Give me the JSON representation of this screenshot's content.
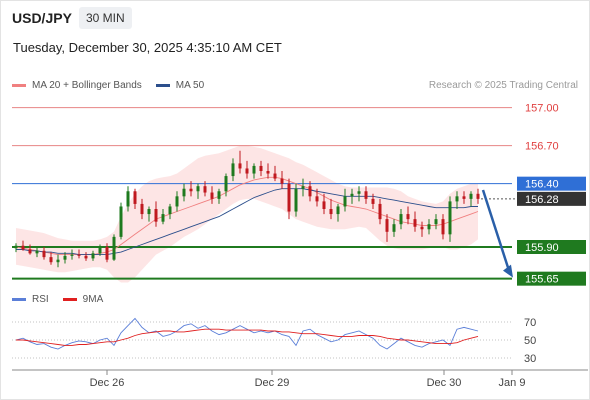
{
  "header": {
    "symbol": "USD/JPY",
    "timeframe": "30 MIN",
    "datetime": "Tuesday, December 30, 2025 4:35:10 AM CET"
  },
  "legend": {
    "ma20_label": "MA 20 + Bollinger Bands",
    "ma50_label": "MA 50",
    "ma20_color": "#f08080",
    "ma50_color": "#2c4f8c",
    "research": "Research © 2025 Trading Central"
  },
  "rsi_legend": {
    "rsi_label": "RSI",
    "ma9_label": "9MA",
    "rsi_color": "#5b7fd8",
    "ma9_color": "#e02020"
  },
  "chart_data": {
    "type": "candlestick",
    "x_tick_labels": [
      "Dec 26",
      "Dec 29",
      "Dec 30",
      "Jan 9"
    ],
    "price_axis": {
      "levels": [
        {
          "value": 157.0,
          "label": "157.00",
          "style": "resistance-thin",
          "color": "#e06666"
        },
        {
          "value": 156.7,
          "label": "156.70",
          "style": "resistance-thin",
          "color": "#e06666"
        },
        {
          "value": 156.4,
          "label": "156.40",
          "style": "pivot",
          "color": "#2f6fd6"
        },
        {
          "value": 155.9,
          "label": "155.90",
          "style": "support",
          "color": "#1f7a1f"
        },
        {
          "value": 155.65,
          "label": "155.65",
          "style": "support",
          "color": "#1f7a1f"
        }
      ],
      "current_price": {
        "value": 156.28,
        "label": "156.28",
        "color": "#333333"
      },
      "ylim": [
        155.6,
        157.1
      ]
    },
    "forecast_arrow": {
      "from": 156.35,
      "to": 155.65,
      "color": "#2a5fa8"
    },
    "candles": [
      [
        155.89,
        155.93,
        155.86,
        155.91
      ],
      [
        155.91,
        155.95,
        155.87,
        155.88
      ],
      [
        155.88,
        155.92,
        155.84,
        155.85
      ],
      [
        155.85,
        155.9,
        155.82,
        155.87
      ],
      [
        155.87,
        155.9,
        155.8,
        155.82
      ],
      [
        155.82,
        155.86,
        155.76,
        155.78
      ],
      [
        155.78,
        155.84,
        155.74,
        155.8
      ],
      [
        155.8,
        155.86,
        155.77,
        155.83
      ],
      [
        155.83,
        155.88,
        155.8,
        155.84
      ],
      [
        155.84,
        155.88,
        155.81,
        155.83
      ],
      [
        155.83,
        155.86,
        155.79,
        155.81
      ],
      [
        155.81,
        155.87,
        155.79,
        155.85
      ],
      [
        155.85,
        155.92,
        155.83,
        155.9
      ],
      [
        155.9,
        155.93,
        155.78,
        155.8
      ],
      [
        155.8,
        156.0,
        155.79,
        155.98
      ],
      [
        155.98,
        156.25,
        155.96,
        156.22
      ],
      [
        156.22,
        156.38,
        156.18,
        156.34
      ],
      [
        156.34,
        156.36,
        156.2,
        156.24
      ],
      [
        156.24,
        156.28,
        156.12,
        156.16
      ],
      [
        156.16,
        156.22,
        156.1,
        156.2
      ],
      [
        156.2,
        156.26,
        156.06,
        156.1
      ],
      [
        156.1,
        156.2,
        156.08,
        156.16
      ],
      [
        156.16,
        156.24,
        156.12,
        156.22
      ],
      [
        156.22,
        156.34,
        156.18,
        156.3
      ],
      [
        156.3,
        156.4,
        156.26,
        156.36
      ],
      [
        156.36,
        156.42,
        156.3,
        156.34
      ],
      [
        156.34,
        156.4,
        156.28,
        156.38
      ],
      [
        156.38,
        156.42,
        156.3,
        156.33
      ],
      [
        156.33,
        156.38,
        156.24,
        156.28
      ],
      [
        156.28,
        156.36,
        156.24,
        156.34
      ],
      [
        156.34,
        156.48,
        156.3,
        156.46
      ],
      [
        156.46,
        156.6,
        156.42,
        156.56
      ],
      [
        156.56,
        156.66,
        156.48,
        156.52
      ],
      [
        156.52,
        156.58,
        156.44,
        156.48
      ],
      [
        156.48,
        156.56,
        156.44,
        156.54
      ],
      [
        156.54,
        156.58,
        156.46,
        156.5
      ],
      [
        156.5,
        156.56,
        156.44,
        156.48
      ],
      [
        156.48,
        156.54,
        156.42,
        156.44
      ],
      [
        156.44,
        156.5,
        156.36,
        156.4
      ],
      [
        156.4,
        156.44,
        156.12,
        156.18
      ],
      [
        156.18,
        156.4,
        156.14,
        156.36
      ],
      [
        156.36,
        156.44,
        156.3,
        156.38
      ],
      [
        156.38,
        156.42,
        156.26,
        156.3
      ],
      [
        156.3,
        156.36,
        156.22,
        156.26
      ],
      [
        156.26,
        156.32,
        156.16,
        156.2
      ],
      [
        156.2,
        156.28,
        156.12,
        156.16
      ],
      [
        156.16,
        156.24,
        156.1,
        156.22
      ],
      [
        156.22,
        156.36,
        156.18,
        156.3
      ],
      [
        156.3,
        156.36,
        156.24,
        156.32
      ],
      [
        156.32,
        156.38,
        156.26,
        156.34
      ],
      [
        156.34,
        156.38,
        156.24,
        156.28
      ],
      [
        156.28,
        156.32,
        156.2,
        156.24
      ],
      [
        156.24,
        156.28,
        156.08,
        156.12
      ],
      [
        156.12,
        156.16,
        155.94,
        156.02
      ],
      [
        156.02,
        156.12,
        155.98,
        156.08
      ],
      [
        156.08,
        156.2,
        156.04,
        156.16
      ],
      [
        156.16,
        156.22,
        156.08,
        156.12
      ],
      [
        156.12,
        156.18,
        156.02,
        156.06
      ],
      [
        156.06,
        156.1,
        155.98,
        156.04
      ],
      [
        156.04,
        156.12,
        156.0,
        156.08
      ],
      [
        156.08,
        156.16,
        156.04,
        156.12
      ],
      [
        156.12,
        156.16,
        155.96,
        156.0
      ],
      [
        156.0,
        156.3,
        155.94,
        156.26
      ],
      [
        156.26,
        156.34,
        156.2,
        156.3
      ],
      [
        156.3,
        156.34,
        156.24,
        156.28
      ],
      [
        156.28,
        156.34,
        156.22,
        156.32
      ],
      [
        156.32,
        156.36,
        156.24,
        156.28
      ]
    ],
    "ma20": [
      155.9,
      155.89,
      155.88,
      155.87,
      155.86,
      155.85,
      155.84,
      155.84,
      155.84,
      155.84,
      155.84,
      155.84,
      155.85,
      155.86,
      155.88,
      155.92,
      155.96,
      156.0,
      156.04,
      156.08,
      156.12,
      156.14,
      156.16,
      156.18,
      156.2,
      156.22,
      156.24,
      156.26,
      156.28,
      156.3,
      156.33,
      156.36,
      156.39,
      156.41,
      156.43,
      156.44,
      156.45,
      156.45,
      156.44,
      156.42,
      156.4,
      156.38,
      156.36,
      156.33,
      156.3,
      156.27,
      156.25,
      156.23,
      156.22,
      156.21,
      156.2,
      156.18,
      156.16,
      156.14,
      156.12,
      156.1,
      156.09,
      156.08,
      156.07,
      156.07,
      156.07,
      156.08,
      156.1,
      156.12,
      156.14,
      156.16,
      156.18
    ],
    "bb_upper": [
      156.05,
      156.04,
      156.03,
      156.02,
      156.01,
      155.99,
      155.97,
      155.96,
      155.95,
      155.95,
      155.95,
      155.95,
      155.96,
      155.98,
      156.02,
      156.14,
      156.24,
      156.32,
      156.38,
      156.42,
      156.44,
      156.45,
      156.46,
      156.48,
      156.52,
      156.56,
      156.6,
      156.62,
      156.63,
      156.64,
      156.66,
      156.68,
      156.7,
      156.7,
      156.69,
      156.68,
      156.66,
      156.64,
      156.62,
      156.6,
      156.57,
      156.55,
      156.52,
      156.49,
      156.46,
      156.43,
      156.4,
      156.38,
      156.37,
      156.37,
      156.37,
      156.37,
      156.37,
      156.37,
      156.36,
      156.34,
      156.3,
      156.28,
      156.26,
      156.25,
      156.24,
      156.26,
      156.32,
      156.36,
      156.38,
      156.4,
      156.4
    ],
    "bb_lower": [
      155.76,
      155.75,
      155.74,
      155.73,
      155.72,
      155.71,
      155.7,
      155.7,
      155.71,
      155.72,
      155.73,
      155.74,
      155.74,
      155.72,
      155.66,
      155.62,
      155.62,
      155.66,
      155.72,
      155.78,
      155.84,
      155.87,
      155.9,
      155.94,
      155.98,
      156.01,
      156.04,
      156.08,
      156.12,
      156.16,
      156.2,
      156.24,
      156.27,
      156.28,
      156.28,
      156.26,
      156.24,
      156.22,
      156.2,
      156.16,
      156.12,
      156.1,
      156.08,
      156.06,
      156.05,
      156.04,
      156.04,
      156.04,
      156.05,
      156.06,
      156.05,
      156.0,
      155.95,
      155.91,
      155.89,
      155.88,
      155.88,
      155.88,
      155.88,
      155.89,
      155.9,
      155.9,
      155.88,
      155.88,
      155.9,
      155.92,
      155.96
    ],
    "ma50": [
      155.88,
      155.88,
      155.87,
      155.87,
      155.86,
      155.86,
      155.85,
      155.85,
      155.85,
      155.84,
      155.84,
      155.84,
      155.84,
      155.84,
      155.85,
      155.86,
      155.88,
      155.9,
      155.92,
      155.94,
      155.96,
      155.98,
      156.0,
      156.02,
      156.04,
      156.06,
      156.08,
      156.1,
      156.12,
      156.14,
      156.17,
      156.2,
      156.23,
      156.26,
      156.29,
      156.31,
      156.33,
      156.35,
      156.36,
      156.36,
      156.36,
      156.36,
      156.35,
      156.34,
      156.33,
      156.32,
      156.31,
      156.3,
      156.3,
      156.3,
      156.3,
      156.3,
      156.29,
      156.28,
      156.27,
      156.26,
      156.25,
      156.24,
      156.23,
      156.22,
      156.21,
      156.21,
      156.21,
      156.21,
      156.21,
      156.22,
      156.22
    ],
    "rsi": {
      "ylim": [
        20,
        80
      ],
      "levels": [
        {
          "value": 70,
          "label": "70"
        },
        {
          "value": 50,
          "label": "50"
        },
        {
          "value": 30,
          "label": "30"
        }
      ],
      "values": [
        50,
        52,
        48,
        45,
        46,
        42,
        40,
        44,
        47,
        49,
        48,
        46,
        50,
        52,
        44,
        58,
        66,
        74,
        64,
        58,
        60,
        54,
        56,
        60,
        66,
        68,
        63,
        66,
        60,
        56,
        58,
        62,
        66,
        62,
        58,
        60,
        58,
        60,
        56,
        54,
        44,
        60,
        62,
        56,
        52,
        48,
        50,
        56,
        58,
        60,
        56,
        52,
        44,
        40,
        46,
        52,
        48,
        44,
        42,
        46,
        48,
        50,
        44,
        62,
        64,
        62,
        60
      ],
      "ma9": [
        50,
        50,
        49,
        48,
        47,
        46,
        45,
        44,
        44,
        45,
        45,
        46,
        47,
        48,
        48,
        50,
        52,
        55,
        57,
        58,
        59,
        60,
        60,
        59,
        59,
        60,
        61,
        62,
        62,
        62,
        61,
        61,
        61,
        61,
        61,
        61,
        60,
        60,
        59,
        59,
        58,
        57,
        57,
        57,
        56,
        55,
        54,
        54,
        54,
        55,
        55,
        55,
        54,
        52,
        51,
        50,
        50,
        49,
        48,
        47,
        46,
        46,
        46,
        47,
        50,
        52,
        54
      ]
    }
  }
}
